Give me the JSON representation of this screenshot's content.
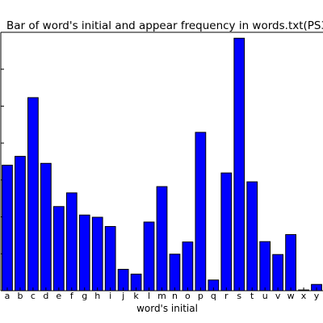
{
  "chart_data": {
    "type": "bar",
    "title": "Bar of word's initial and appear frequency in words.txt(PS3",
    "xlabel": "word's initial",
    "ylabel": "",
    "categories": [
      "a",
      "b",
      "c",
      "d",
      "e",
      "f",
      "g",
      "h",
      "i",
      "j",
      "k",
      "l",
      "m",
      "n",
      "o",
      "p",
      "q",
      "r",
      "s",
      "t",
      "u",
      "v",
      "w",
      "x",
      "y"
    ],
    "values": [
      3400,
      3640,
      5230,
      3450,
      2280,
      2650,
      2050,
      1990,
      1740,
      580,
      450,
      1860,
      2820,
      990,
      1320,
      4290,
      290,
      3190,
      6840,
      2950,
      1330,
      980,
      1520,
      20,
      170
    ],
    "ylim": [
      0,
      7000
    ],
    "grid": false,
    "legend": "none",
    "bar_color": "#0000ff",
    "edge_color": "#000000"
  }
}
